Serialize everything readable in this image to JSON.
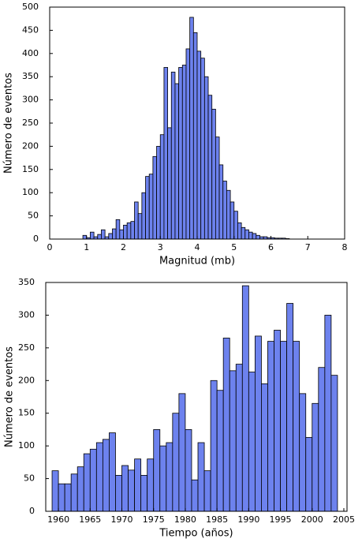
{
  "chart_data": [
    {
      "type": "histogram",
      "xlabel": "Magnitud (mb)",
      "ylabel": "Número de eventos",
      "color": "#6d82ee",
      "bins": [
        0.9,
        1.0,
        1.1,
        1.2,
        1.3,
        1.4,
        1.5,
        1.6,
        1.7,
        1.8,
        1.9,
        2.0,
        2.1,
        2.2,
        2.3,
        2.4,
        2.5,
        2.6,
        2.7,
        2.8,
        2.9,
        3.0,
        3.1,
        3.2,
        3.3,
        3.4,
        3.5,
        3.6,
        3.7,
        3.8,
        3.9,
        4.0,
        4.1,
        4.2,
        4.3,
        4.4,
        4.5,
        4.6,
        4.7,
        4.8,
        4.9,
        5.0,
        5.1,
        5.2,
        5.3,
        5.4,
        5.5,
        5.6,
        5.7,
        5.8,
        5.9,
        6.0,
        6.1,
        6.2,
        6.3,
        6.4,
        6.5
      ],
      "values": [
        8,
        3,
        15,
        5,
        10,
        20,
        5,
        12,
        22,
        42,
        20,
        30,
        35,
        38,
        80,
        55,
        100,
        135,
        140,
        178,
        200,
        225,
        370,
        240,
        360,
        335,
        370,
        375,
        410,
        478,
        445,
        405,
        390,
        350,
        310,
        280,
        220,
        160,
        125,
        105,
        80,
        60,
        35,
        25,
        20,
        15,
        12,
        8,
        5,
        5,
        3,
        3,
        2,
        2,
        2,
        1
      ],
      "xlim": [
        0,
        8
      ],
      "xticks": [
        0,
        1,
        2,
        3,
        4,
        5,
        6,
        7,
        8
      ],
      "ylim": [
        0,
        500
      ],
      "yticks": [
        0,
        50,
        100,
        150,
        200,
        250,
        300,
        350,
        400,
        450,
        500
      ]
    },
    {
      "type": "histogram",
      "xlabel": "Tiempo (años)",
      "ylabel": "Número de eventos",
      "color": "#6d82ee",
      "bins": [
        1959,
        1960,
        1961,
        1962,
        1963,
        1964,
        1965,
        1966,
        1967,
        1968,
        1969,
        1970,
        1971,
        1972,
        1973,
        1974,
        1975,
        1976,
        1977,
        1978,
        1979,
        1980,
        1981,
        1982,
        1983,
        1984,
        1985,
        1986,
        1987,
        1988,
        1989,
        1990,
        1991,
        1992,
        1993,
        1994,
        1995,
        1996,
        1997,
        1998,
        1999,
        2000,
        2001,
        2002,
        2003,
        2004
      ],
      "values": [
        62,
        42,
        42,
        57,
        68,
        88,
        95,
        105,
        110,
        120,
        55,
        70,
        63,
        80,
        55,
        80,
        125,
        100,
        105,
        150,
        180,
        125,
        48,
        105,
        62,
        200,
        185,
        265,
        215,
        225,
        345,
        213,
        268,
        195,
        260,
        277,
        260,
        318,
        260,
        180,
        113,
        165,
        220,
        300,
        208
      ],
      "xlim": [
        1958,
        2005.5
      ],
      "xticks": [
        1960,
        1965,
        1970,
        1975,
        1980,
        1985,
        1990,
        1995,
        2000,
        2005
      ],
      "ylim": [
        0,
        350
      ],
      "yticks": [
        0,
        50,
        100,
        150,
        200,
        250,
        300,
        350
      ]
    }
  ]
}
